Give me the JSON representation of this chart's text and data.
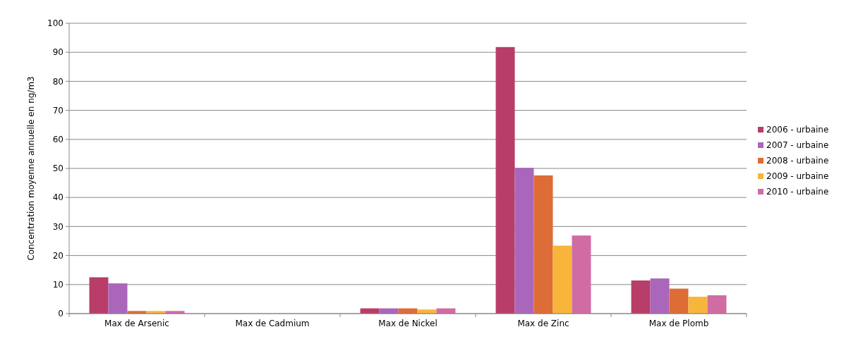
{
  "chart_data": {
    "type": "bar",
    "ylabel": "Concentration moyenne annuelle en ng/m3",
    "categories": [
      "Max de Arsenic",
      "Max de Cadmium",
      "Max de Nickel",
      "Max de Zinc",
      "Max de Plomb"
    ],
    "series": [
      {
        "name": "2006 - urbaine",
        "color": "#b83d68",
        "values": [
          12.5,
          0,
          1.8,
          91.8,
          11.4
        ]
      },
      {
        "name": "2007 - urbaine",
        "color": "#aa66bb",
        "values": [
          10.4,
          0,
          1.8,
          50.2,
          12.1
        ]
      },
      {
        "name": "2008 - urbaine",
        "color": "#de6c36",
        "values": [
          0.9,
          0,
          1.8,
          47.6,
          8.6
        ]
      },
      {
        "name": "2009 - urbaine",
        "color": "#f8b53b",
        "values": [
          0.9,
          0,
          1.4,
          23.4,
          5.8
        ]
      },
      {
        "name": "2010 - urbaine",
        "color": "#d06ca3",
        "values": [
          0.9,
          0,
          1.8,
          26.9,
          6.3
        ]
      }
    ],
    "ylim": [
      0,
      100
    ],
    "yticks": [
      0,
      10,
      20,
      30,
      40,
      50,
      60,
      70,
      80,
      90,
      100
    ],
    "grid": "y",
    "legend": "right"
  }
}
